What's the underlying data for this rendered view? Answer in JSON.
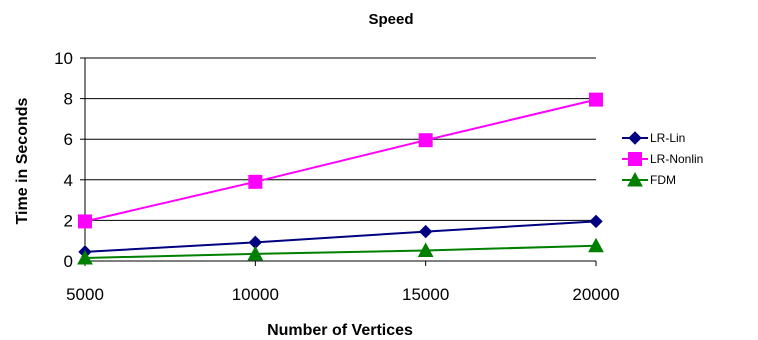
{
  "chart_data": {
    "type": "line",
    "title": "Speed",
    "xlabel": "Number of Vertices",
    "ylabel": "Time in Seconds",
    "x": [
      5000,
      10000,
      15000,
      20000
    ],
    "x_tick_labels": [
      "5000",
      "10000",
      "15000",
      "20000"
    ],
    "ylim": [
      0,
      10
    ],
    "y_ticks": [
      0,
      2,
      4,
      6,
      8,
      10
    ],
    "y_tick_labels": [
      "0",
      "2",
      "4",
      "6",
      "8",
      "10"
    ],
    "grid": "horizontal",
    "legend_position": "right",
    "series": [
      {
        "name": "LR-Lin",
        "values": [
          0.45,
          0.92,
          1.45,
          1.95
        ],
        "color": "#000080",
        "marker": "diamond"
      },
      {
        "name": "LR-Nonlin",
        "values": [
          1.95,
          3.9,
          5.95,
          7.95
        ],
        "color": "#ff00ff",
        "marker": "square"
      },
      {
        "name": "FDM",
        "values": [
          0.15,
          0.35,
          0.52,
          0.75
        ],
        "color": "#008000",
        "marker": "triangle"
      }
    ]
  }
}
